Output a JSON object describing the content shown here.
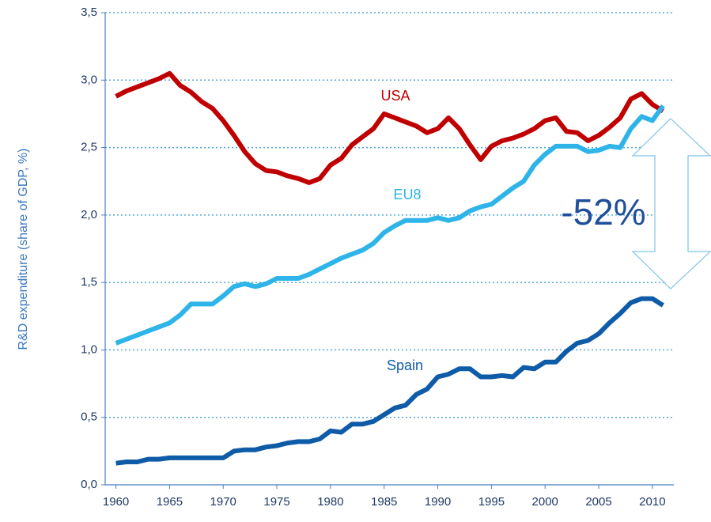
{
  "chart_data": {
    "type": "line",
    "y_label": "R&D expenditure  (share of GDP, %)",
    "annotation": "-52%",
    "x": [
      1960,
      1961,
      1962,
      1963,
      1964,
      1965,
      1966,
      1967,
      1968,
      1969,
      1970,
      1971,
      1972,
      1973,
      1974,
      1975,
      1976,
      1977,
      1978,
      1979,
      1980,
      1981,
      1982,
      1983,
      1984,
      1985,
      1986,
      1987,
      1988,
      1989,
      1990,
      1991,
      1992,
      1993,
      1994,
      1995,
      1996,
      1997,
      1998,
      1999,
      2000,
      2001,
      2002,
      2003,
      2004,
      2005,
      2006,
      2007,
      2008,
      2009,
      2010,
      2011
    ],
    "series": [
      {
        "name": "USA",
        "color": "#c00000",
        "values": [
          2.88,
          2.92,
          2.95,
          2.98,
          3.01,
          3.05,
          2.96,
          2.91,
          2.84,
          2.79,
          2.7,
          2.59,
          2.47,
          2.38,
          2.33,
          2.32,
          2.29,
          2.27,
          2.24,
          2.27,
          2.37,
          2.42,
          2.52,
          2.58,
          2.64,
          2.75,
          2.72,
          2.69,
          2.66,
          2.61,
          2.64,
          2.72,
          2.64,
          2.52,
          2.41,
          2.51,
          2.55,
          2.57,
          2.6,
          2.64,
          2.7,
          2.72,
          2.62,
          2.61,
          2.55,
          2.59,
          2.65,
          2.72,
          2.86,
          2.9,
          2.82,
          2.77
        ]
      },
      {
        "name": "EU8",
        "color": "#2eb4e8",
        "values": [
          1.05,
          1.08,
          1.11,
          1.14,
          1.17,
          1.2,
          1.26,
          1.34,
          1.34,
          1.34,
          1.4,
          1.47,
          1.49,
          1.47,
          1.49,
          1.53,
          1.53,
          1.53,
          1.56,
          1.6,
          1.64,
          1.68,
          1.71,
          1.74,
          1.79,
          1.87,
          1.92,
          1.96,
          1.96,
          1.96,
          1.98,
          1.96,
          1.98,
          2.03,
          2.06,
          2.08,
          2.14,
          2.2,
          2.25,
          2.37,
          2.45,
          2.51,
          2.51,
          2.51,
          2.47,
          2.48,
          2.51,
          2.5,
          2.64,
          2.73,
          2.7,
          2.81
        ]
      },
      {
        "name": "Spain",
        "color": "#0e5ba8",
        "values": [
          0.16,
          0.17,
          0.17,
          0.19,
          0.19,
          0.2,
          0.2,
          0.2,
          0.2,
          0.2,
          0.2,
          0.25,
          0.26,
          0.26,
          0.28,
          0.29,
          0.31,
          0.32,
          0.32,
          0.34,
          0.4,
          0.39,
          0.45,
          0.45,
          0.47,
          0.52,
          0.57,
          0.59,
          0.67,
          0.71,
          0.8,
          0.82,
          0.86,
          0.86,
          0.8,
          0.8,
          0.81,
          0.8,
          0.87,
          0.86,
          0.91,
          0.91,
          0.99,
          1.05,
          1.07,
          1.12,
          1.2,
          1.27,
          1.35,
          1.38,
          1.38,
          1.33
        ]
      }
    ],
    "xlim": [
      1959,
      2012
    ],
    "xticks": [
      1960,
      1965,
      1970,
      1975,
      1980,
      1985,
      1990,
      1995,
      2000,
      2005,
      2010
    ],
    "ylim": [
      0,
      3.5
    ],
    "yticks": [
      {
        "value": 0,
        "label": "0,0"
      },
      {
        "value": 0.5,
        "label": "0,5"
      },
      {
        "value": 1,
        "label": "1,0"
      },
      {
        "value": 1.5,
        "label": "1,5"
      },
      {
        "value": 2,
        "label": "2,0"
      },
      {
        "value": 2.5,
        "label": "2,5"
      },
      {
        "value": 3,
        "label": "3,0"
      },
      {
        "value": 3.5,
        "label": "3,5"
      }
    ],
    "grid": true
  }
}
